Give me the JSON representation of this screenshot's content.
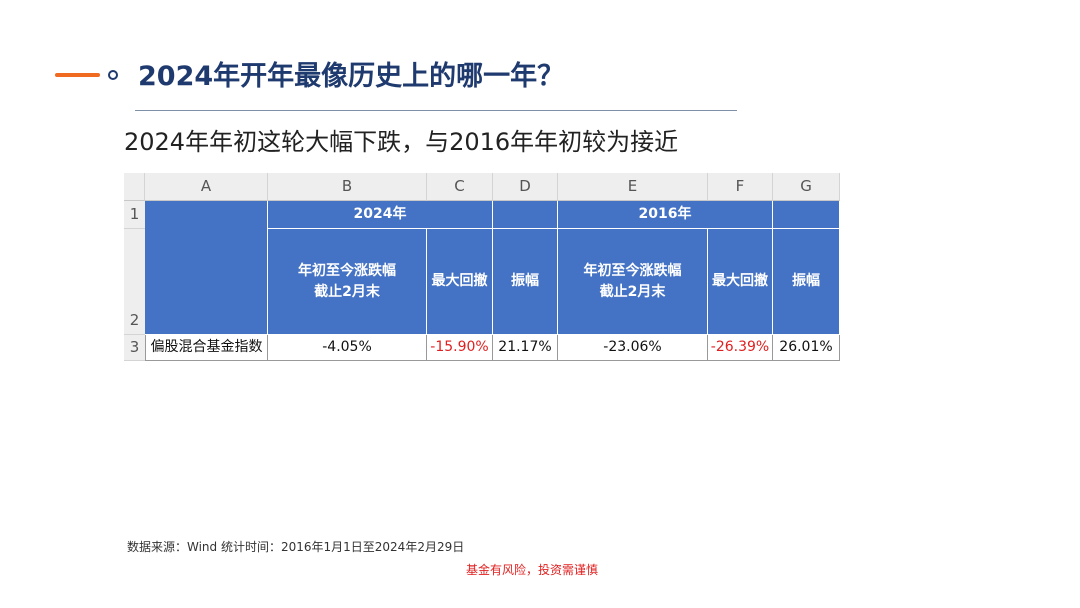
{
  "header": {
    "title": "2024年开年最像历史上的哪一年？",
    "subtitle": "2024年年初这轮大幅下跌，与2016年年初较为接近"
  },
  "table": {
    "columns": [
      "A",
      "B",
      "C",
      "D",
      "E",
      "F",
      "G"
    ],
    "row_numbers": [
      "1",
      "2",
      "3"
    ],
    "groups": [
      "2024年",
      "2016年"
    ],
    "headers": [
      "年初至今涨跌幅\n截止2月末",
      "最大回撤",
      "振幅",
      "年初至今涨跌幅\n截止2月末",
      "最大回撤",
      "振幅"
    ],
    "row": [
      "偏股混合基金指数",
      "-4.05%",
      "-15.90%",
      "21.17%",
      "-23.06%",
      "-26.39%",
      "26.01%"
    ]
  },
  "footer": {
    "source": "数据来源：Wind 统计时间：2016年1月1日至2024年2月29日",
    "disclaimer": "基金有风险，投资需谨慎"
  }
}
